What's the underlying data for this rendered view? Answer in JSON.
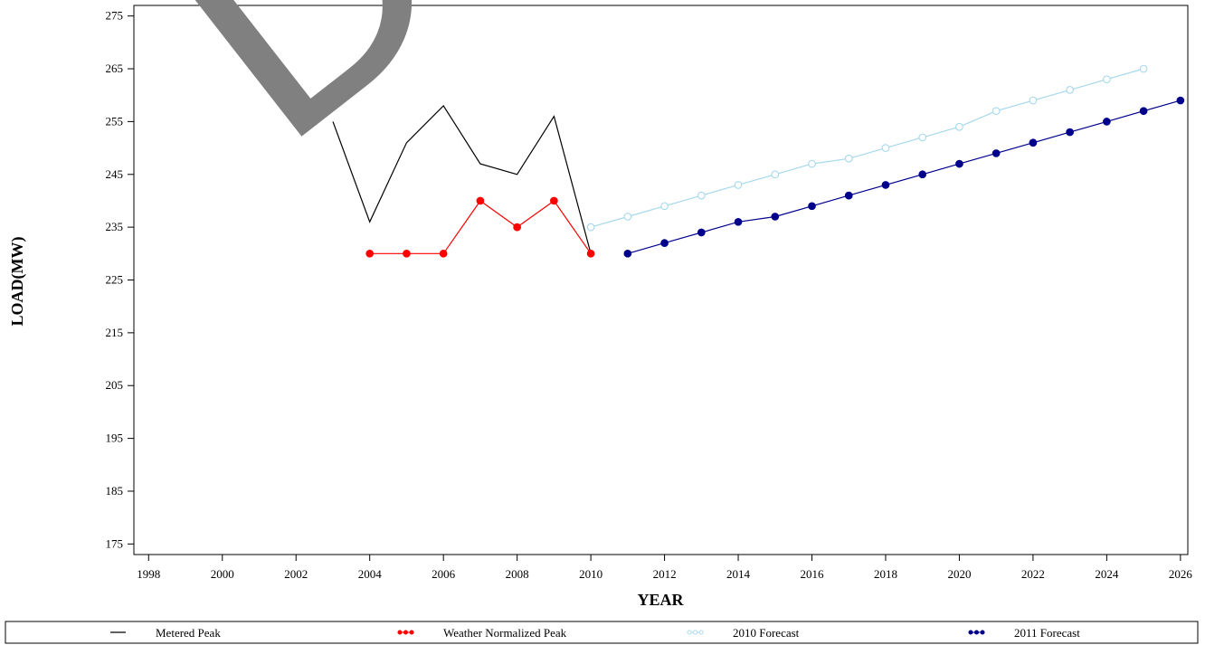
{
  "chart_data": {
    "type": "line",
    "xlabel": "YEAR",
    "ylabel": "LOAD(MW)",
    "xlim": [
      1997.6,
      2026.2
    ],
    "ylim": [
      173,
      277
    ],
    "xticks": [
      1998,
      2000,
      2002,
      2004,
      2006,
      2008,
      2010,
      2012,
      2014,
      2016,
      2018,
      2020,
      2022,
      2024,
      2026
    ],
    "yticks": [
      175,
      185,
      195,
      205,
      215,
      225,
      235,
      245,
      255,
      265,
      275
    ],
    "grid": false,
    "legend_position": "bottom",
    "watermark": "DRAFT",
    "series": [
      {
        "name": "Metered Peak",
        "color": "#000000",
        "marker": "none",
        "x": [
          2003,
          2004,
          2005,
          2006,
          2007,
          2008,
          2009,
          2010
        ],
        "y": [
          255,
          236,
          251,
          258,
          247,
          245,
          256,
          230
        ]
      },
      {
        "name": "Weather Normalized Peak",
        "color": "#ff0000",
        "marker": "filled",
        "x": [
          2004,
          2005,
          2006,
          2007,
          2008,
          2009,
          2010
        ],
        "y": [
          230,
          230,
          230,
          240,
          235,
          240,
          230
        ]
      },
      {
        "name": "2010 Forecast",
        "color": "#a6d8ec",
        "marker": "open",
        "x": [
          2010,
          2011,
          2012,
          2013,
          2014,
          2015,
          2016,
          2017,
          2018,
          2019,
          2020,
          2021,
          2022,
          2023,
          2024,
          2025
        ],
        "y": [
          235,
          237,
          239,
          241,
          243,
          245,
          247,
          248,
          250,
          252,
          254,
          257,
          259,
          261,
          263,
          265
        ]
      },
      {
        "name": "2011 Forecast",
        "color": "#00008b",
        "marker": "filled",
        "x": [
          2011,
          2012,
          2013,
          2014,
          2015,
          2016,
          2017,
          2018,
          2019,
          2020,
          2021,
          2022,
          2023,
          2024,
          2025,
          2026
        ],
        "y": [
          230,
          232,
          234,
          236,
          237,
          239,
          241,
          243,
          245,
          247,
          249,
          251,
          253,
          255,
          257,
          259
        ]
      }
    ]
  }
}
